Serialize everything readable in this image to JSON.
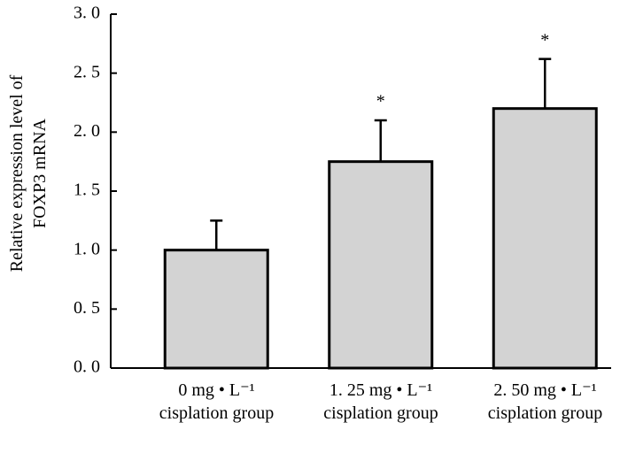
{
  "chart_data": {
    "type": "bar",
    "ylabel": "Relative expression level of\nFOXP3 mRNA",
    "categories": [
      "0  mg • L⁻¹\ncisplation group",
      "1. 25 mg • L⁻¹\ncisplation group",
      "2. 50 mg • L⁻¹\ncisplation group"
    ],
    "values": [
      1.0,
      1.75,
      2.2
    ],
    "errors": [
      0.25,
      0.35,
      0.42
    ],
    "markers": [
      null,
      "*",
      "*"
    ],
    "color": "#d3d3d3",
    "ylim": [
      0,
      3.0
    ],
    "yticks": [
      {
        "value": 0,
        "label": "0. 0"
      },
      {
        "value": 0.5,
        "label": "0. 5"
      },
      {
        "value": 1.0,
        "label": "1. 0"
      },
      {
        "value": 1.5,
        "label": "1. 5"
      },
      {
        "value": 2.0,
        "label": "2. 0"
      },
      {
        "value": 2.5,
        "label": "2. 5"
      },
      {
        "value": 3.0,
        "label": "3. 0"
      }
    ],
    "grid": false
  }
}
